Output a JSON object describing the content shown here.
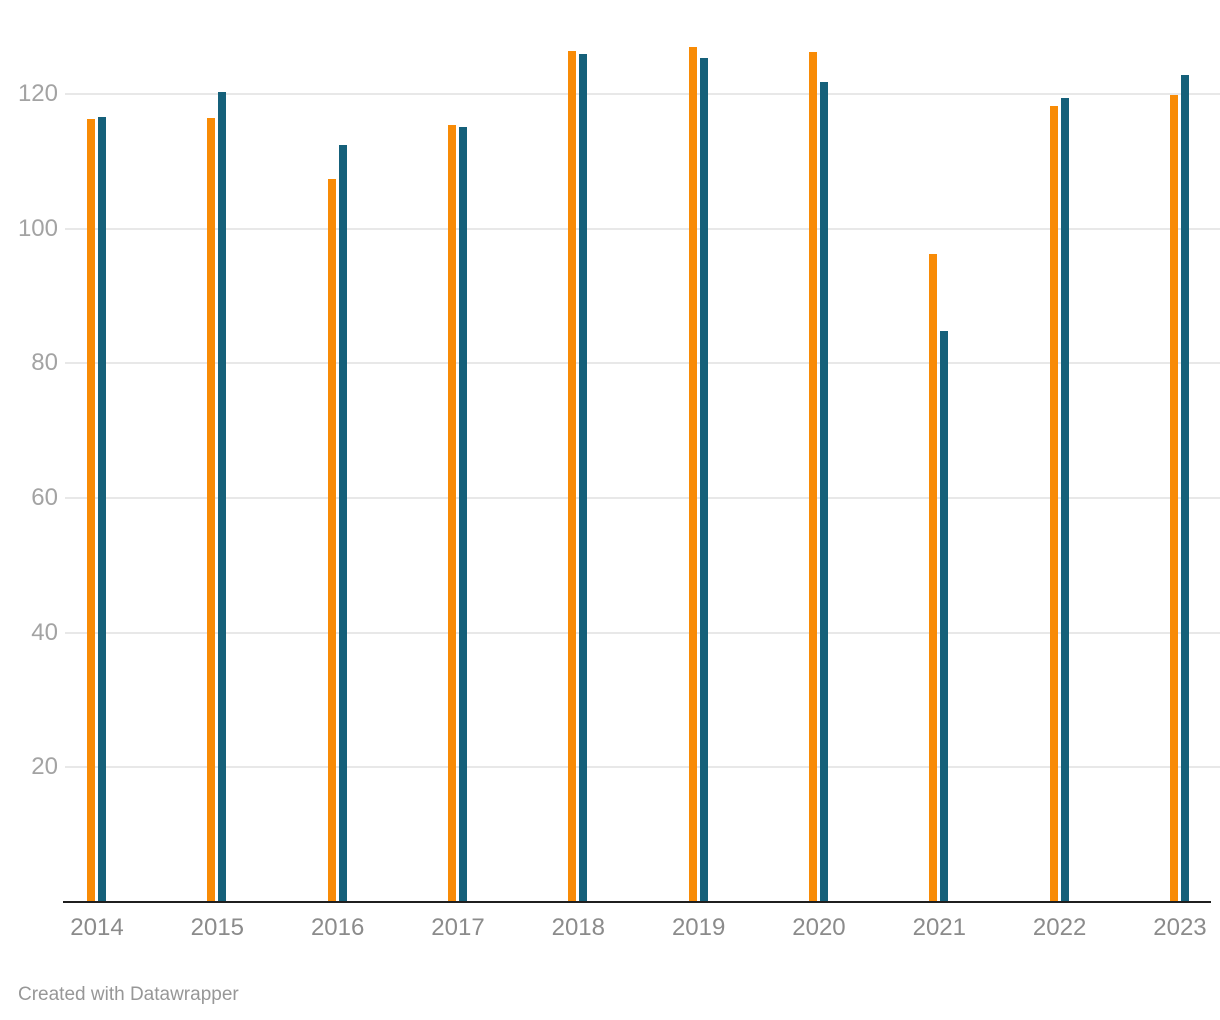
{
  "chart_data": {
    "type": "bar",
    "categories": [
      "2014",
      "2015",
      "2016",
      "2017",
      "2018",
      "2019",
      "2020",
      "2021",
      "2022",
      "2023"
    ],
    "series": [
      {
        "name": "orange-series",
        "color": "#F88B06",
        "values": [
          116.3,
          116.4,
          107.4,
          115.3,
          126.4,
          126.9,
          126.2,
          96.2,
          118.2,
          119.8
        ]
      },
      {
        "name": "teal-series",
        "color": "#15607A",
        "values": [
          116.6,
          120.2,
          112.4,
          115.0,
          125.9,
          125.3,
          121.7,
          84.8,
          119.4,
          122.8
        ]
      }
    ],
    "title": "",
    "xlabel": "",
    "ylabel": "",
    "yticks": [
      20,
      40,
      60,
      80,
      100,
      120
    ],
    "ylim": [
      0,
      134
    ],
    "grid": true,
    "legend": false
  },
  "style": {
    "background": "#FFFFFF",
    "gridline_color": "#E8E8E8",
    "axis_color": "#1F1F1F",
    "y_label_color": "#A3A3A3",
    "x_label_color": "#8B8B8B",
    "footer_color": "#979797"
  },
  "footer": {
    "credit": "Created with Datawrapper"
  }
}
